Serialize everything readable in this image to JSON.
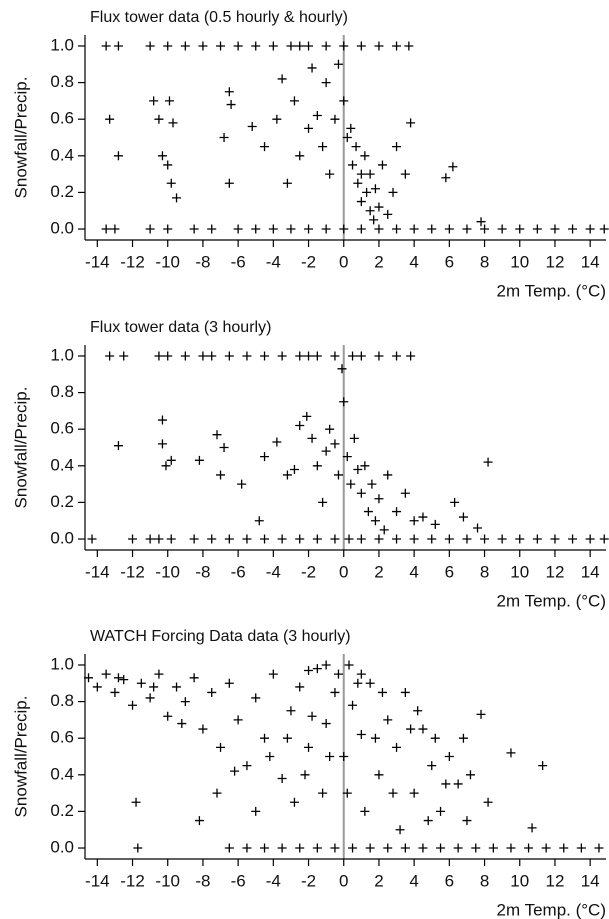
{
  "chart_data": [
    {
      "type": "scatter",
      "title": "Flux tower data (0.5 hourly & hourly)",
      "x_label": "2m Temp. (°C)",
      "y_label": "Snowfall/Precip.",
      "xlim": [
        -14.7,
        14.9
      ],
      "ylim": [
        -0.06,
        1.06
      ],
      "xticks": [
        -14,
        -12,
        -10,
        -8,
        -6,
        -4,
        -2,
        0,
        2,
        4,
        6,
        8,
        10,
        12,
        14
      ],
      "yticks": [
        {
          "value": 0,
          "label": "0.0"
        },
        {
          "value": 0.2,
          "label": "0.2"
        },
        {
          "value": 0.4,
          "label": "0.4"
        },
        {
          "value": 0.6,
          "label": "0.6"
        },
        {
          "value": 0.8,
          "label": "0.8"
        },
        {
          "value": 1,
          "label": "1.0"
        }
      ],
      "vline": 0,
      "marker": "+",
      "color": "#000000",
      "vline_color": "#999999",
      "x": [
        -13.5,
        -12.8,
        -11,
        -10,
        -9,
        -8,
        -7,
        -6,
        -5,
        -4,
        -3,
        -2.5,
        -2,
        -1,
        0,
        1,
        2,
        3,
        3.7,
        -13.5,
        -13,
        -11,
        -10,
        -8.5,
        -7.5,
        -6,
        -5,
        -4,
        -3,
        -2,
        -1,
        0,
        1,
        2,
        3,
        4,
        5,
        6,
        7,
        8,
        9,
        10,
        11,
        12,
        13,
        14,
        14.8,
        -13.3,
        -12.8,
        -10.8,
        -10.5,
        -10.3,
        -10,
        -9.8,
        -9.9,
        -9.7,
        -9.5,
        -6.8,
        -6.5,
        -6.4,
        -6.5,
        -5.2,
        -4.5,
        -3.8,
        -3.5,
        -3.2,
        -2.8,
        -2.5,
        -2,
        -1.8,
        -1.5,
        -1.2,
        -1,
        -0.8,
        -0.5,
        -0.3,
        0,
        0.2,
        0.4,
        0.5,
        0.7,
        0.8,
        1,
        1,
        1.2,
        1.3,
        1.5,
        1.5,
        1.7,
        1.8,
        2,
        2.2,
        2.5,
        2.8,
        3,
        3.5,
        3.8,
        5.8,
        6.2,
        7.8
      ],
      "values": [
        1,
        1,
        1,
        1,
        1,
        1,
        1,
        1,
        1,
        1,
        1,
        1,
        1,
        1,
        1,
        1,
        1,
        1,
        1,
        0,
        0,
        0,
        0,
        0,
        0,
        0,
        0,
        0,
        0,
        0,
        0,
        0,
        0,
        0,
        0,
        0,
        0,
        0,
        0,
        0,
        0,
        0,
        0,
        0,
        0,
        0,
        0,
        0.6,
        0.4,
        0.7,
        0.6,
        0.4,
        0.35,
        0.25,
        0.7,
        0.58,
        0.17,
        0.5,
        0.75,
        0.68,
        0.25,
        0.56,
        0.45,
        0.6,
        0.82,
        0.25,
        0.7,
        0.4,
        0.55,
        0.88,
        0.62,
        0.45,
        0.8,
        0.3,
        0.6,
        0.9,
        0.7,
        0.5,
        0.55,
        0.35,
        0.45,
        0.25,
        0.3,
        0.15,
        0.4,
        0.2,
        0.1,
        0.3,
        0.05,
        0.22,
        0.12,
        0.35,
        0.08,
        0.2,
        0.45,
        0.3,
        0.58,
        0.28,
        0.34,
        0.04
      ]
    },
    {
      "type": "scatter",
      "title": "Flux tower data (3 hourly)",
      "x_label": "2m Temp. (°C)",
      "y_label": "Snowfall/Precip.",
      "xlim": [
        -14.7,
        14.9
      ],
      "ylim": [
        -0.06,
        1.06
      ],
      "xticks": [
        -14,
        -12,
        -10,
        -8,
        -6,
        -4,
        -2,
        0,
        2,
        4,
        6,
        8,
        10,
        12,
        14
      ],
      "yticks": [
        {
          "value": 0,
          "label": "0.0"
        },
        {
          "value": 0.2,
          "label": "0.2"
        },
        {
          "value": 0.4,
          "label": "0.4"
        },
        {
          "value": 0.6,
          "label": "0.6"
        },
        {
          "value": 0.8,
          "label": "0.8"
        },
        {
          "value": 1,
          "label": "1.0"
        }
      ],
      "vline": 0,
      "marker": "+",
      "color": "#000000",
      "vline_color": "#999999",
      "x": [
        -13.3,
        -12.5,
        -10.5,
        -10,
        -9,
        -8,
        -7.5,
        -6.5,
        -5.5,
        -4.5,
        -3.5,
        -2.5,
        -2,
        -1.5,
        -0.5,
        0.5,
        1,
        2,
        3,
        3.8,
        -14.3,
        -12,
        -11,
        -10.5,
        -9.8,
        -8.5,
        -7.5,
        -6.5,
        -5.5,
        -4.5,
        -3.5,
        -2.5,
        -1.5,
        -0.5,
        0.3,
        1,
        2,
        3,
        4,
        5,
        6,
        7,
        8,
        9,
        10,
        11,
        12,
        13,
        14,
        14.8,
        -12.8,
        -10.3,
        -10.3,
        -10.1,
        -9.8,
        -8.2,
        -7.2,
        -7,
        -6.8,
        -5.8,
        -4.8,
        -4.5,
        -3.8,
        -3.2,
        -2.8,
        -2.5,
        -2.1,
        -1.8,
        -1.5,
        -1.2,
        -1,
        -0.8,
        -0.5,
        -0.3,
        -0.1,
        0,
        0.2,
        0.4,
        0.6,
        0.8,
        1,
        1.2,
        1.4,
        1.6,
        1.8,
        2,
        2.3,
        2.5,
        3,
        3.5,
        4,
        4.5,
        5.2,
        6.3,
        6.8,
        7.6,
        8.2
      ],
      "values": [
        1,
        1,
        1,
        1,
        1,
        1,
        1,
        1,
        1,
        1,
        1,
        1,
        1,
        1,
        1,
        1,
        1,
        1,
        1,
        1,
        0,
        0,
        0,
        0,
        0,
        0,
        0,
        0,
        0,
        0,
        0,
        0,
        0,
        0,
        0,
        0,
        0,
        0,
        0,
        0,
        0,
        0,
        0,
        0,
        0,
        0,
        0,
        0,
        0,
        0,
        0.51,
        0.65,
        0.52,
        0.4,
        0.43,
        0.43,
        0.57,
        0.35,
        0.5,
        0.3,
        0.1,
        0.45,
        0.53,
        0.35,
        0.38,
        0.62,
        0.67,
        0.55,
        0.4,
        0.2,
        0.48,
        0.6,
        0.52,
        0.35,
        0.93,
        0.75,
        0.45,
        0.3,
        0.55,
        0.38,
        0.25,
        0.4,
        0.15,
        0.3,
        0.1,
        0.22,
        0.05,
        0.35,
        0.15,
        0.25,
        0.1,
        0.12,
        0.08,
        0.2,
        0.12,
        0.06,
        0.42
      ]
    },
    {
      "type": "scatter",
      "title": "WATCH Forcing Data data (3 hourly)",
      "x_label": "2m Temp. (°C)",
      "y_label": "Snowfall/Precip.",
      "xlim": [
        -14.7,
        14.9
      ],
      "ylim": [
        -0.06,
        1.06
      ],
      "xticks": [
        -14,
        -12,
        -10,
        -8,
        -6,
        -4,
        -2,
        0,
        2,
        4,
        6,
        8,
        10,
        12,
        14
      ],
      "yticks": [
        {
          "value": 0,
          "label": "0.0"
        },
        {
          "value": 0.2,
          "label": "0.2"
        },
        {
          "value": 0.4,
          "label": "0.4"
        },
        {
          "value": 0.6,
          "label": "0.6"
        },
        {
          "value": 0.8,
          "label": "0.8"
        },
        {
          "value": 1,
          "label": "1.0"
        }
      ],
      "vline": 0,
      "marker": "+",
      "color": "#000000",
      "vline_color": "#999999",
      "x": [
        -11.7,
        -6.5,
        -5.5,
        -4.5,
        -3.5,
        -2.5,
        -1.5,
        -0.5,
        0.5,
        1.5,
        2.5,
        3.5,
        4.5,
        5.5,
        6.5,
        7.5,
        8.5,
        9.5,
        10.5,
        11.5,
        12.5,
        13.5,
        14.5,
        -14.5,
        -14,
        -13.5,
        -13,
        -12.5,
        -12,
        -11.5,
        -11,
        -10.5,
        -10,
        -9.5,
        -9,
        -8.5,
        -8,
        -7.5,
        -7,
        -6.5,
        -6,
        -5.5,
        -5,
        -4.5,
        -4,
        -3.5,
        -3,
        -2.5,
        -2,
        -1.5,
        -1,
        -0.5,
        0,
        0.5,
        1,
        1.5,
        2,
        2.5,
        3,
        3.5,
        4,
        4.5,
        5,
        5.5,
        6,
        6.5,
        7,
        7.8,
        8.2,
        9.5,
        10.7,
        11.3,
        -11.8,
        -8.2,
        -7.2,
        -6.2,
        -5,
        -4.2,
        -3.2,
        -2.8,
        -2.2,
        -1.8,
        -1.2,
        -0.8,
        -0.3,
        0.2,
        0.8,
        1.2,
        1.8,
        2.2,
        2.8,
        3.2,
        3.8,
        4.2,
        4.8,
        5.2,
        5.8,
        6.8,
        7.2,
        -9.2,
        -10.8,
        -12.8,
        -2,
        -1,
        0.3,
        1
      ],
      "values": [
        0,
        0,
        0,
        0,
        0,
        0,
        0,
        0,
        0,
        0,
        0,
        0,
        0,
        0,
        0,
        0,
        0,
        0,
        0,
        0,
        0,
        0,
        0,
        0.93,
        0.88,
        0.95,
        0.85,
        0.92,
        0.78,
        0.9,
        0.82,
        0.95,
        0.72,
        0.88,
        0.8,
        0.93,
        0.65,
        0.85,
        0.55,
        0.9,
        0.7,
        0.45,
        0.82,
        0.6,
        0.95,
        0.38,
        0.75,
        0.88,
        0.55,
        0.98,
        0.68,
        0.85,
        0.5,
        0.78,
        0.62,
        0.9,
        0.4,
        0.7,
        0.55,
        0.85,
        0.3,
        0.65,
        0.45,
        0.2,
        0.5,
        0.35,
        0.15,
        0.73,
        0.25,
        0.52,
        0.11,
        0.45,
        0.25,
        0.15,
        0.3,
        0.42,
        0.2,
        0.5,
        0.6,
        0.25,
        0.4,
        0.72,
        0.3,
        0.5,
        0.95,
        0.3,
        0.9,
        0.2,
        0.6,
        0.85,
        0.3,
        0.1,
        0.65,
        0.75,
        0.15,
        0.6,
        0.35,
        0.6,
        0.4,
        0.68,
        0.88,
        0.93,
        0.97,
        1,
        1,
        0.95
      ]
    }
  ]
}
